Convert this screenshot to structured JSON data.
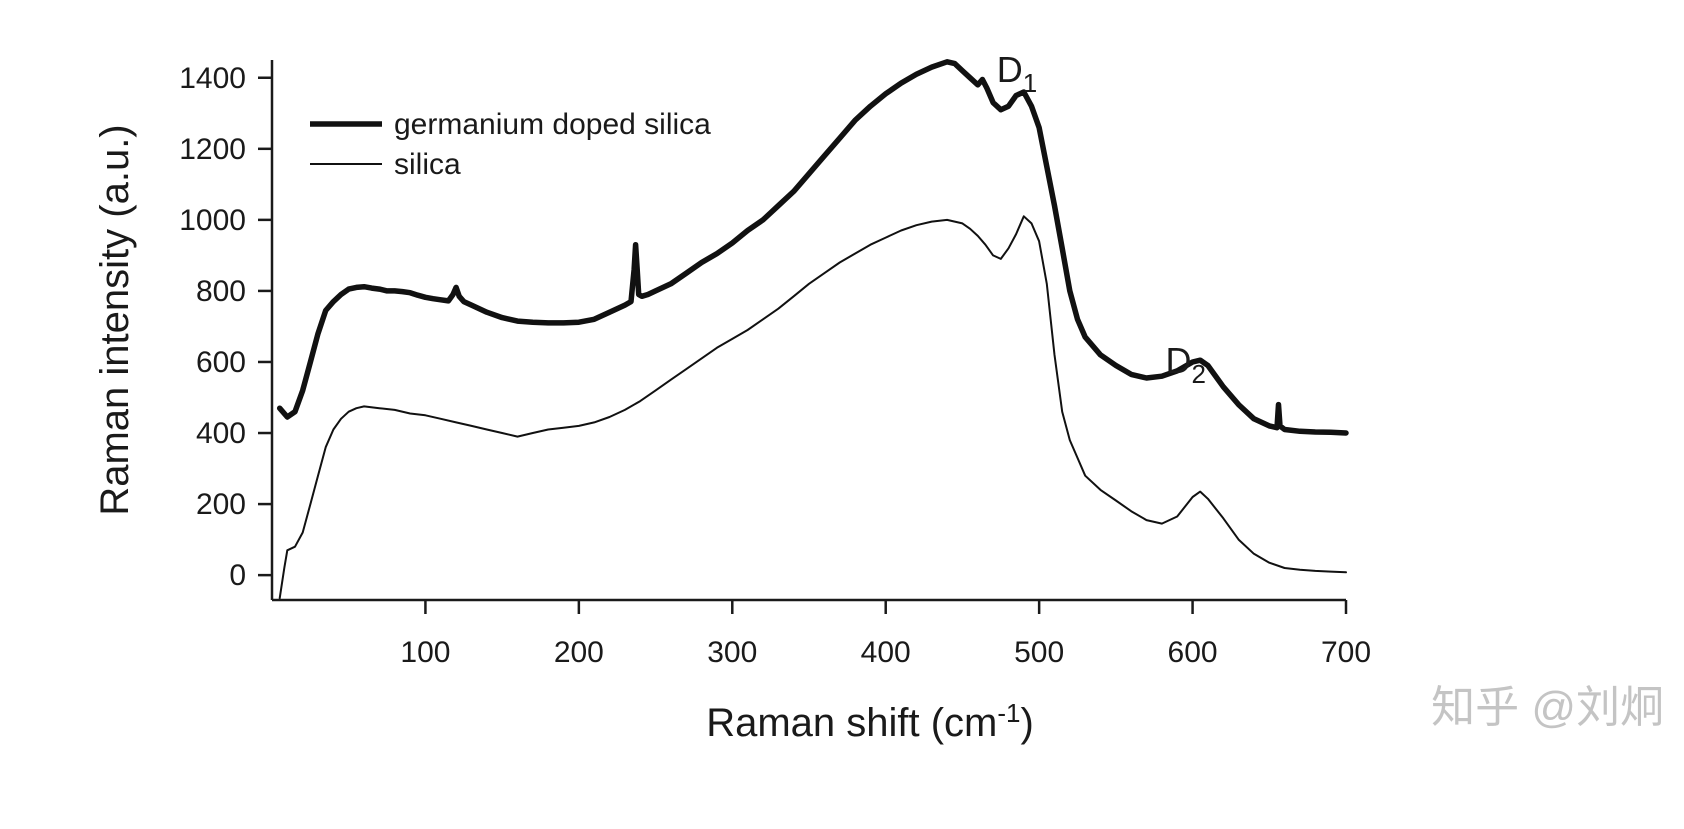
{
  "chart_data": {
    "type": "line",
    "xlabel": "Raman shift (cm",
    "xlabel_sup": "-1",
    "xlabel_tail": ")",
    "ylabel": "Raman intensity (a.u.)",
    "xlim": [
      0,
      700
    ],
    "ylim": [
      -70,
      1450
    ],
    "x_ticks": [
      100,
      200,
      300,
      400,
      500,
      600,
      700
    ],
    "y_ticks": [
      0,
      200,
      400,
      600,
      800,
      1000,
      1200,
      1400
    ],
    "grid": false,
    "legend": "top-left",
    "series": [
      {
        "name": "germanium doped silica",
        "style": "thick",
        "x": [
          5,
          10,
          15,
          20,
          25,
          30,
          35,
          40,
          45,
          50,
          55,
          60,
          65,
          70,
          75,
          80,
          85,
          90,
          95,
          100,
          105,
          110,
          115,
          118,
          120,
          122,
          125,
          130,
          140,
          150,
          160,
          170,
          180,
          190,
          200,
          210,
          220,
          230,
          234,
          236,
          237,
          238,
          239,
          241,
          245,
          250,
          260,
          270,
          280,
          290,
          300,
          310,
          320,
          330,
          340,
          350,
          360,
          370,
          380,
          390,
          400,
          410,
          420,
          430,
          440,
          445,
          450,
          455,
          460,
          463,
          466,
          470,
          475,
          480,
          485,
          490,
          495,
          500,
          505,
          510,
          515,
          520,
          525,
          530,
          540,
          550,
          560,
          570,
          580,
          590,
          600,
          605,
          610,
          620,
          630,
          640,
          650,
          655,
          656,
          657,
          660,
          670,
          680,
          690,
          700
        ],
        "y": [
          470,
          445,
          460,
          520,
          600,
          680,
          745,
          770,
          790,
          805,
          810,
          812,
          808,
          805,
          800,
          800,
          798,
          795,
          788,
          782,
          778,
          775,
          772,
          790,
          810,
          785,
          770,
          760,
          740,
          725,
          715,
          712,
          710,
          710,
          712,
          720,
          740,
          760,
          770,
          860,
          930,
          860,
          790,
          785,
          790,
          800,
          820,
          850,
          880,
          905,
          935,
          970,
          1000,
          1040,
          1080,
          1130,
          1180,
          1230,
          1280,
          1320,
          1355,
          1385,
          1410,
          1430,
          1445,
          1440,
          1420,
          1400,
          1380,
          1395,
          1370,
          1330,
          1310,
          1320,
          1350,
          1360,
          1320,
          1260,
          1150,
          1040,
          920,
          800,
          720,
          670,
          620,
          590,
          565,
          555,
          560,
          575,
          600,
          605,
          590,
          530,
          480,
          440,
          420,
          415,
          480,
          420,
          410,
          405,
          403,
          402,
          400
        ]
      },
      {
        "name": "silica",
        "style": "thin",
        "x": [
          5,
          8,
          10,
          15,
          20,
          25,
          30,
          35,
          40,
          45,
          50,
          55,
          60,
          70,
          80,
          90,
          100,
          110,
          120,
          130,
          140,
          150,
          160,
          170,
          180,
          190,
          200,
          210,
          220,
          230,
          240,
          250,
          260,
          270,
          280,
          290,
          300,
          310,
          320,
          330,
          340,
          350,
          360,
          370,
          380,
          390,
          400,
          410,
          420,
          430,
          440,
          450,
          455,
          460,
          465,
          470,
          475,
          480,
          485,
          490,
          495,
          500,
          505,
          510,
          515,
          520,
          525,
          530,
          540,
          550,
          560,
          570,
          580,
          590,
          600,
          605,
          610,
          620,
          630,
          640,
          650,
          660,
          670,
          680,
          690,
          700
        ],
        "y": [
          -65,
          20,
          70,
          80,
          120,
          200,
          280,
          360,
          410,
          440,
          460,
          470,
          475,
          470,
          465,
          455,
          450,
          440,
          430,
          420,
          410,
          400,
          390,
          400,
          410,
          415,
          420,
          430,
          445,
          465,
          490,
          520,
          550,
          580,
          610,
          640,
          665,
          690,
          720,
          750,
          785,
          820,
          850,
          880,
          905,
          930,
          950,
          970,
          985,
          995,
          1000,
          990,
          975,
          955,
          930,
          900,
          890,
          920,
          960,
          1010,
          990,
          940,
          820,
          620,
          460,
          380,
          330,
          280,
          240,
          210,
          180,
          155,
          145,
          165,
          220,
          235,
          215,
          160,
          100,
          60,
          35,
          20,
          15,
          12,
          10,
          8
        ]
      }
    ],
    "annotations": [
      {
        "label": "D",
        "sub": "1",
        "x": 488,
        "y": 1445
      },
      {
        "label": "D",
        "sub": "2",
        "x": 598,
        "y": 625
      }
    ]
  },
  "watermark": "知乎 @刘炯"
}
